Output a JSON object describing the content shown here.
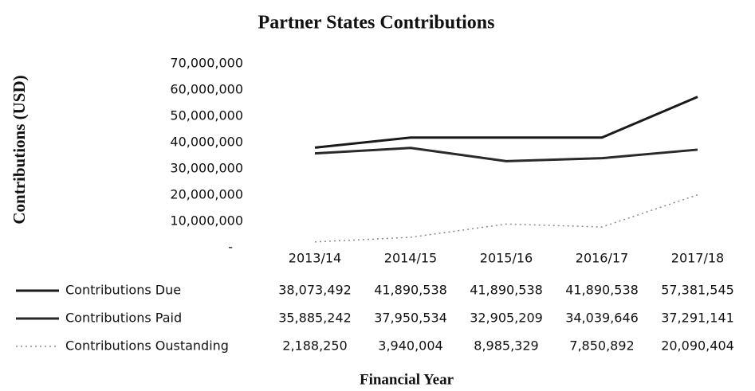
{
  "chart_data": {
    "type": "line",
    "title": "Partner States Contributions",
    "y_label": "Contributions (USD)",
    "x_label": "Financial Year",
    "categories": [
      "2013/14",
      "2014/15",
      "2015/16",
      "2016/17",
      "2017/18"
    ],
    "series": [
      {
        "name": "Contributions Due",
        "color": "#1a1a1a",
        "line_style": "solid",
        "values": [
          38073492,
          41890538,
          41890538,
          41890538,
          57381545
        ],
        "value_labels": [
          "38,073,492",
          "41,890,538",
          "41,890,538",
          "41,890,538",
          "57,381,545"
        ]
      },
      {
        "name": "Contributions Paid",
        "color": "#2a2a2a",
        "line_style": "solid",
        "values": [
          35885242,
          37950534,
          32905209,
          34039646,
          37291141
        ],
        "value_labels": [
          "35,885,242",
          "37,950,534",
          "32,905,209",
          "34,039,646",
          "37,291,141"
        ]
      },
      {
        "name": "Contributions Oustanding",
        "color": "#888888",
        "line_style": "dotted",
        "values": [
          2188250,
          3940004,
          8985329,
          7850892,
          20090404
        ],
        "value_labels": [
          "2,188,250",
          "3,940,004",
          "8,985,329",
          "7,850,892",
          "20,090,404"
        ]
      }
    ],
    "ylim": [
      0,
      70000000
    ],
    "yticks": [
      {
        "value": 0,
        "label": "-"
      },
      {
        "value": 10000000,
        "label": "10,000,000"
      },
      {
        "value": 20000000,
        "label": "20,000,000"
      },
      {
        "value": 30000000,
        "label": "30,000,000"
      },
      {
        "value": 40000000,
        "label": "40,000,000"
      },
      {
        "value": 50000000,
        "label": "50,000,000"
      },
      {
        "value": 60000000,
        "label": "60,000,000"
      },
      {
        "value": 70000000,
        "label": "70,000,000"
      }
    ],
    "grid": false,
    "data_table": true
  }
}
